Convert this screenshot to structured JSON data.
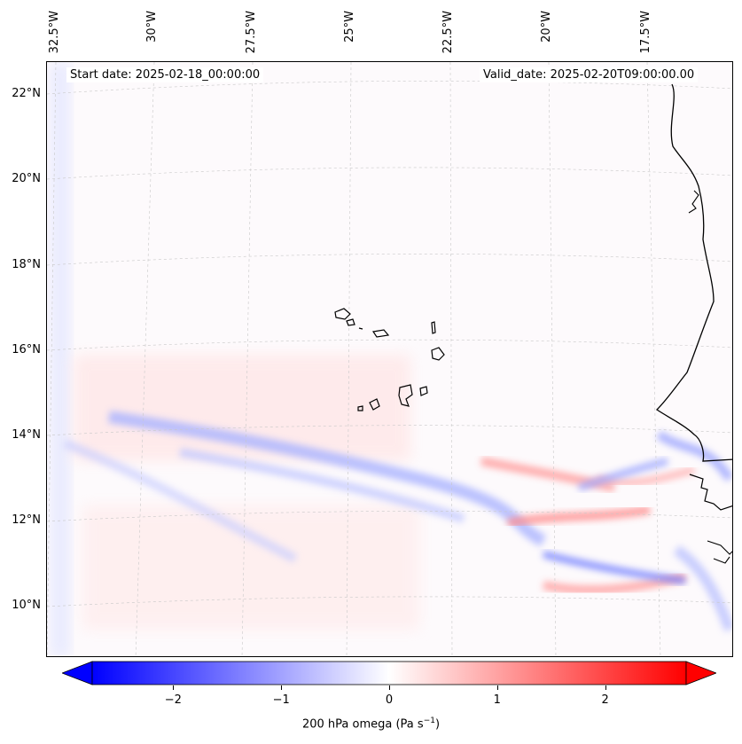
{
  "map": {
    "start_date": "Start date: 2025-02-18_00:00:00",
    "valid_date": "Valid_date: 2025-02-20T09:00:00.00",
    "longitude_labels": [
      "32.5°W",
      "30°W",
      "27.5°W",
      "25°W",
      "22.5°W",
      "20°W",
      "17.5°W"
    ],
    "latitude_labels": [
      "22°N",
      "20°N",
      "18°N",
      "16°N",
      "14°N",
      "12°N",
      "10°N"
    ],
    "variable": "200 hPa omega",
    "units_base": "Pa s",
    "units_exp": "−1"
  },
  "colorbar": {
    "ticks": [
      "−2",
      "−1",
      "0",
      "1",
      "2"
    ],
    "tick_values": [
      -2,
      -1,
      0,
      1,
      2
    ],
    "range": [
      -2.75,
      2.75
    ],
    "colors": {
      "neg": "#0000ff",
      "mid": "#ffffff",
      "pos": "#ff0000"
    }
  }
}
